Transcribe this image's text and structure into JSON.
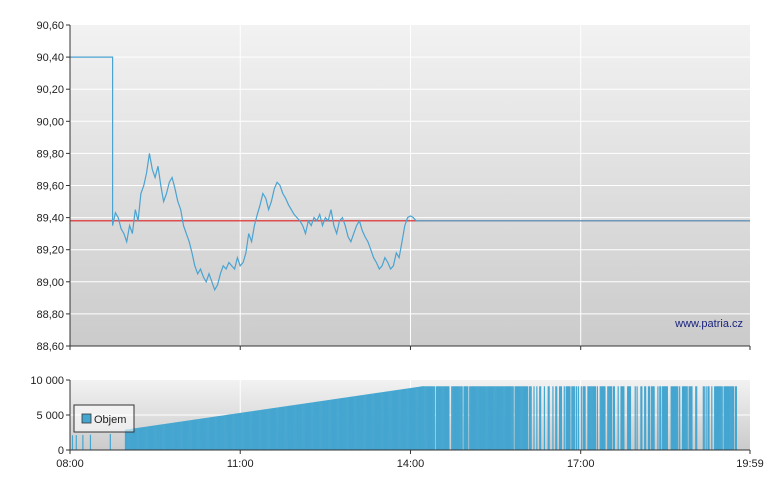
{
  "watermark": "www.patria.cz",
  "colors": {
    "price_line": "#4aa3d1",
    "reference_line": "#e02020",
    "volume_bar": "#45a6d0",
    "panel_top": "#f2f2f2",
    "panel_bottom": "#cbcbcb",
    "grid": "#ffffff",
    "axis": "#333333"
  },
  "chart_data": [
    {
      "type": "line",
      "title": "",
      "xlabel": "",
      "ylabel": "",
      "x_unit": "time (HH:MM)",
      "xlim": [
        "08:00",
        "19:59"
      ],
      "ylim": [
        88.6,
        90.6
      ],
      "y_ticks": [
        "90,60",
        "90,40",
        "90,20",
        "90,00",
        "89,80",
        "89,60",
        "89,40",
        "89,20",
        "89,00",
        "88,80",
        "88,60"
      ],
      "x_gridlines": [
        "11:00",
        "14:00",
        "17:00"
      ],
      "grid": true,
      "reference_line": 89.38,
      "series": [
        {
          "x": [
            "08:00",
            "08:45",
            "08:45",
            "08:48",
            "08:51",
            "08:54",
            "08:57",
            "09:00",
            "09:03",
            "09:06",
            "09:09",
            "09:12",
            "09:15",
            "09:18",
            "09:21",
            "09:24",
            "09:27",
            "09:30",
            "09:33",
            "09:36",
            "09:39",
            "09:42",
            "09:45",
            "09:48",
            "09:51",
            "09:54",
            "09:57",
            "10:00",
            "10:03",
            "10:06",
            "10:09",
            "10:12",
            "10:15",
            "10:18",
            "10:21",
            "10:24",
            "10:27",
            "10:30",
            "10:33",
            "10:36",
            "10:39",
            "10:42",
            "10:45",
            "10:48",
            "10:51",
            "10:54",
            "10:57",
            "11:00",
            "11:03",
            "11:06",
            "11:09",
            "11:12",
            "11:15",
            "11:18",
            "11:21",
            "11:24",
            "11:27",
            "11:30",
            "11:33",
            "11:36",
            "11:39",
            "11:42",
            "11:45",
            "11:48",
            "11:51",
            "11:54",
            "11:57",
            "12:00",
            "12:03",
            "12:06",
            "12:09",
            "12:12",
            "12:15",
            "12:18",
            "12:21",
            "12:24",
            "12:27",
            "12:30",
            "12:33",
            "12:36",
            "12:39",
            "12:42",
            "12:45",
            "12:48",
            "12:51",
            "12:54",
            "12:57",
            "13:00",
            "13:03",
            "13:06",
            "13:09",
            "13:12",
            "13:15",
            "13:18",
            "13:21",
            "13:24",
            "13:27",
            "13:30",
            "13:33",
            "13:36",
            "13:39",
            "13:42",
            "13:45",
            "13:48",
            "13:51",
            "13:54",
            "13:57",
            "14:00",
            "14:03",
            "14:06",
            "14:09",
            "14:12",
            "19:59"
          ],
          "y": [
            90.4,
            90.4,
            89.35,
            89.43,
            89.4,
            89.33,
            89.3,
            89.25,
            89.35,
            89.3,
            89.45,
            89.38,
            89.55,
            89.6,
            89.68,
            89.8,
            89.7,
            89.65,
            89.72,
            89.6,
            89.5,
            89.55,
            89.62,
            89.65,
            89.58,
            89.5,
            89.45,
            89.35,
            89.3,
            89.25,
            89.18,
            89.1,
            89.05,
            89.08,
            89.03,
            89.0,
            89.05,
            89.0,
            88.95,
            88.98,
            89.05,
            89.1,
            89.08,
            89.12,
            89.1,
            89.08,
            89.15,
            89.1,
            89.12,
            89.18,
            89.3,
            89.25,
            89.35,
            89.42,
            89.48,
            89.55,
            89.52,
            89.45,
            89.5,
            89.58,
            89.62,
            89.6,
            89.55,
            89.52,
            89.48,
            89.45,
            89.42,
            89.4,
            89.38,
            89.35,
            89.3,
            89.38,
            89.35,
            89.4,
            89.38,
            89.42,
            89.35,
            89.4,
            89.38,
            89.45,
            89.35,
            89.3,
            89.38,
            89.4,
            89.35,
            89.28,
            89.25,
            89.3,
            89.35,
            89.38,
            89.32,
            89.28,
            89.25,
            89.2,
            89.15,
            89.12,
            89.08,
            89.1,
            89.15,
            89.12,
            89.08,
            89.1,
            89.18,
            89.15,
            89.25,
            89.35,
            89.4,
            89.41,
            89.4,
            89.38,
            89.38,
            89.38,
            89.38
          ]
        }
      ]
    },
    {
      "type": "bar",
      "title": "",
      "xlabel": "",
      "ylabel": "",
      "xlim": [
        "08:00",
        "19:59"
      ],
      "ylim": [
        0,
        10000
      ],
      "y_ticks": [
        "10 000",
        "5 000",
        "0"
      ],
      "x_ticks": [
        "08:00",
        "11:00",
        "14:00",
        "17:00",
        "19:59"
      ],
      "legend": {
        "label": "Objem",
        "placement": "left"
      },
      "grid": true,
      "series": [
        {
          "name": "Objem",
          "segments": [
            {
              "from": "08:00",
              "to": "08:45",
              "start_value": 2100,
              "end_value": 2300,
              "density": 0.12
            },
            {
              "from": "08:58",
              "to": "14:12",
              "start_value": 2900,
              "end_value": 9100,
              "density": 1.0
            },
            {
              "from": "14:12",
              "to": "16:00",
              "start_value": 9100,
              "end_value": 9100,
              "density": 0.9
            },
            {
              "from": "16:00",
              "to": "19:45",
              "start_value": 9100,
              "end_value": 9100,
              "density": 0.55
            }
          ]
        }
      ]
    }
  ]
}
